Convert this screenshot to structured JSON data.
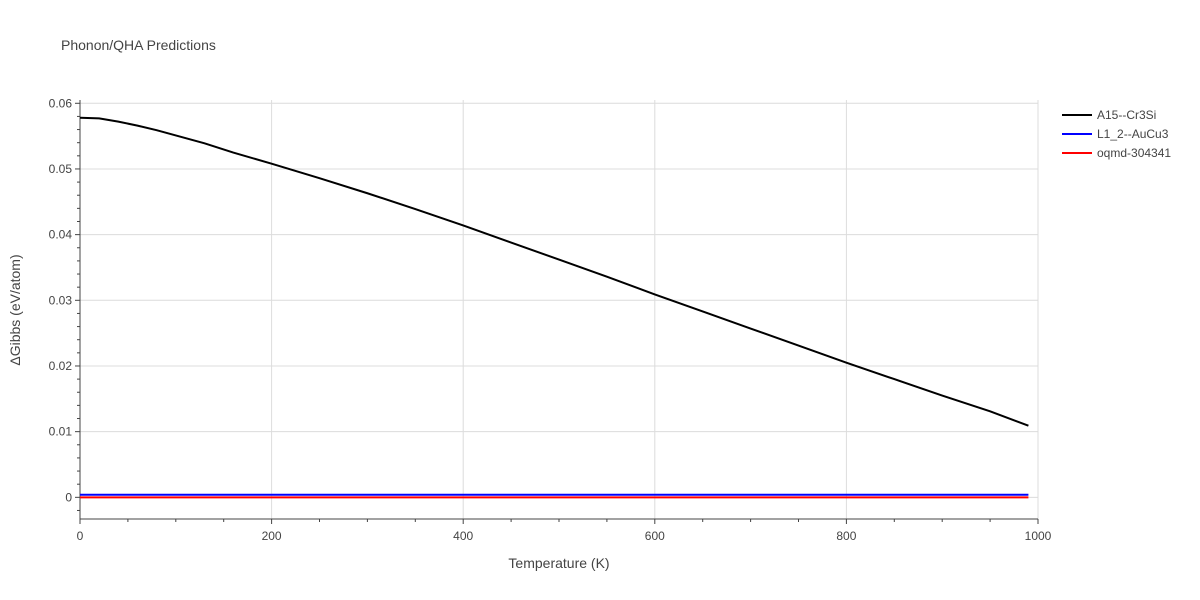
{
  "chart_data": {
    "type": "line",
    "title": "Phonon/QHA Predictions",
    "xlabel": "Temperature (K)",
    "ylabel": "ΔGibbs (eV/atom)",
    "xlim": [
      0,
      1000
    ],
    "ylim": [
      -0.0033,
      0.0605
    ],
    "x_ticks": [
      0,
      200,
      400,
      600,
      800,
      1000
    ],
    "x_tick_labels": [
      "0",
      "200",
      "400",
      "600",
      "800",
      "1000"
    ],
    "y_ticks": [
      0,
      0.01,
      0.02,
      0.03,
      0.04,
      0.05,
      0.06
    ],
    "y_tick_labels": [
      "0",
      "0.01",
      "0.02",
      "0.03",
      "0.04",
      "0.05",
      "0.06"
    ],
    "grid": true,
    "legend_position": "top-right",
    "series": [
      {
        "name": "A15--Cr3Si",
        "color": "#000000",
        "x": [
          0,
          20,
          40,
          60,
          80,
          100,
          130,
          160,
          200,
          250,
          300,
          350,
          400,
          450,
          500,
          550,
          600,
          650,
          700,
          750,
          800,
          850,
          900,
          950,
          990
        ],
        "y": [
          0.0578,
          0.0577,
          0.0572,
          0.0566,
          0.0559,
          0.0551,
          0.0539,
          0.0525,
          0.0508,
          0.0486,
          0.0463,
          0.0439,
          0.0414,
          0.0388,
          0.0362,
          0.0336,
          0.0309,
          0.0283,
          0.0257,
          0.0231,
          0.0205,
          0.018,
          0.0155,
          0.0131,
          0.0109
        ]
      },
      {
        "name": "L1_2--AuCu3",
        "color": "#0000ff",
        "x": [
          0,
          990
        ],
        "y": [
          0.0004,
          0.0004
        ]
      },
      {
        "name": "oqmd-304341",
        "color": "#ff0000",
        "x": [
          0,
          990
        ],
        "y": [
          0,
          0
        ]
      }
    ]
  }
}
